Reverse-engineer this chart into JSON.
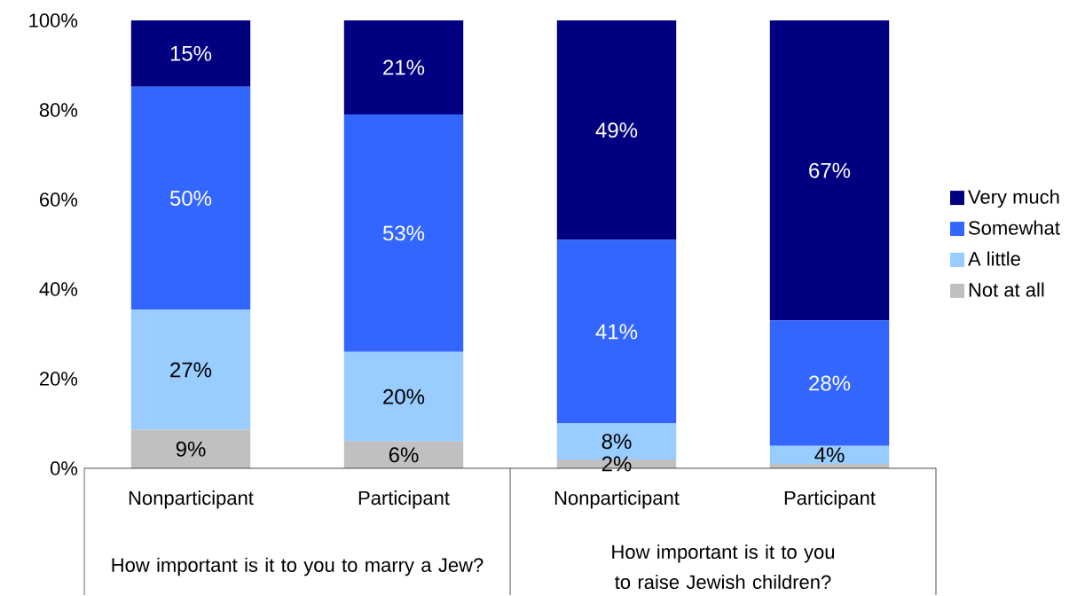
{
  "chart_data": {
    "type": "bar",
    "stacked": true,
    "categories": [
      "Nonparticipant",
      "Participant",
      "Nonparticipant",
      "Participant"
    ],
    "series": [
      {
        "name": "Not at all",
        "color": "#c0c0c0",
        "values": [
          8.6,
          6,
          2,
          1
        ],
        "value_labels": [
          "9%",
          "6%",
          "2%",
          null
        ]
      },
      {
        "name": "A little",
        "color": "#99ccff",
        "values": [
          26.8,
          20,
          8,
          4
        ],
        "value_labels": [
          "27%",
          "20%",
          "8%",
          "4%"
        ]
      },
      {
        "name": "Somewhat",
        "color": "#3366ff",
        "values": [
          49.8,
          53,
          41,
          28
        ],
        "value_labels": [
          "50%",
          "53%",
          "41%",
          "28%"
        ]
      },
      {
        "name": "Very much",
        "color": "#000080",
        "values": [
          14.8,
          21,
          49,
          67
        ],
        "value_labels": [
          "15%",
          "21%",
          "49%",
          "67%"
        ]
      }
    ],
    "ylim": [
      0,
      100
    ],
    "yticks": [
      {
        "value": 0,
        "label": "0%"
      },
      {
        "value": 20,
        "label": "20%"
      },
      {
        "value": 40,
        "label": "40%"
      },
      {
        "value": 60,
        "label": "60%"
      },
      {
        "value": 80,
        "label": "80%"
      },
      {
        "value": 100,
        "label": "100%"
      }
    ],
    "legend": "right",
    "annotations": [
      "How important is it to you to marry a Jew?",
      "How important is it to you to raise Jewish children?"
    ]
  }
}
